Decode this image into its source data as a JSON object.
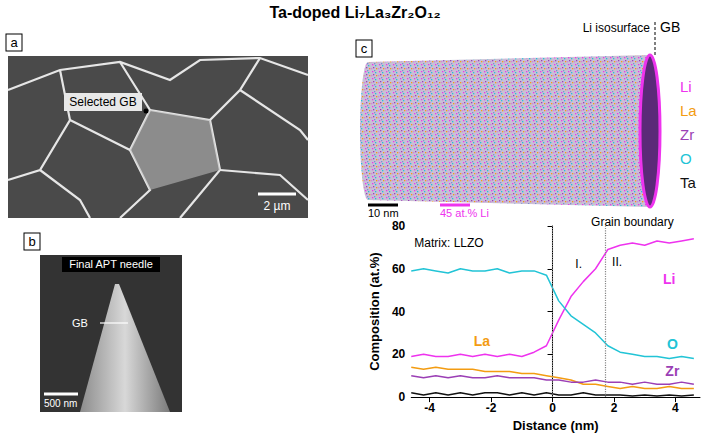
{
  "title": "Ta-doped Li₇La₃Zr₂O₁₂",
  "panels": {
    "a": {
      "letter": "a",
      "label": "Selected GB",
      "scale_bar": "2 µm"
    },
    "b": {
      "letter": "b",
      "title": "Final APT needle",
      "label": "GB",
      "scale_bar": "500 nm"
    },
    "c": {
      "letter": "c",
      "isosurface_label": "Li isosurface",
      "boundary_label": "GB",
      "scale_bars": [
        "10 nm",
        "45 at.% Li"
      ]
    }
  },
  "chart_data": {
    "type": "line",
    "x_label": "Distance (nm)",
    "y_label": "Composition (at.%)",
    "x": [
      -4.6,
      -4.2,
      -3.8,
      -3.4,
      -3.0,
      -2.6,
      -2.2,
      -1.8,
      -1.4,
      -1.0,
      -0.6,
      -0.2,
      0.2,
      0.6,
      1.0,
      1.4,
      1.8,
      2.2,
      2.6,
      3.0,
      3.4,
      3.8,
      4.2,
      4.6
    ],
    "series": [
      {
        "name": "Li",
        "color": "#ee33ee",
        "values": [
          19,
          20,
          19,
          19,
          20,
          19,
          20,
          19,
          20,
          19,
          21,
          24,
          36,
          47,
          54,
          60,
          69,
          71,
          72,
          71,
          73,
          72,
          73,
          74
        ]
      },
      {
        "name": "La",
        "color": "#f39c12",
        "values": [
          14,
          13,
          14,
          13,
          13,
          13,
          12,
          12,
          12,
          11,
          11,
          10,
          9,
          8,
          6,
          6,
          5,
          4,
          5,
          4,
          4,
          5,
          4,
          4
        ]
      },
      {
        "name": "Zr",
        "color": "#9b3fb5",
        "values": [
          10,
          9,
          10,
          9,
          10,
          9,
          9,
          10,
          9,
          9,
          9,
          8,
          8,
          7,
          7,
          8,
          7,
          7,
          6,
          7,
          6,
          6,
          7,
          6
        ]
      },
      {
        "name": "O",
        "color": "#22c4d6",
        "values": [
          59,
          60,
          59,
          58,
          60,
          59,
          59,
          60,
          58,
          59,
          59,
          57,
          45,
          38,
          34,
          30,
          24,
          21,
          20,
          19,
          19,
          18,
          19,
          18
        ]
      },
      {
        "name": "Ta",
        "color": "#111111",
        "values": [
          2,
          1,
          2,
          1,
          2,
          1,
          2,
          2,
          1,
          2,
          1,
          2,
          1,
          1,
          2,
          1,
          1,
          1,
          0.5,
          1,
          0.5,
          1,
          0.5,
          1
        ]
      }
    ],
    "xlim": [
      -4.6,
      4.8
    ],
    "xticks": [
      -4,
      -2,
      0,
      2,
      4
    ],
    "ylim": [
      0,
      80
    ],
    "yticks": [
      0,
      20,
      40,
      60,
      80
    ],
    "grid": false,
    "boundaries": [
      0,
      1.7
    ],
    "annotations": [
      "Matrix: LLZO",
      "I.",
      "II.",
      "Grain boundary"
    ]
  }
}
